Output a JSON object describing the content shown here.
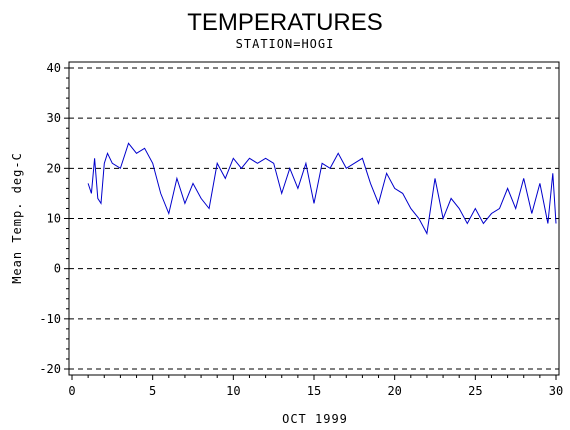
{
  "chart_data": {
    "type": "line",
    "title": "TEMPERATURES",
    "subtitle": "STATION=HOGI",
    "xlabel": "OCT 1999",
    "ylabel": "Mean Temp. deg-C",
    "xlim": [
      0,
      30
    ],
    "ylim": [
      -20,
      40
    ],
    "xticks": [
      0,
      5,
      10,
      15,
      20,
      25,
      30
    ],
    "yticks": [
      -20,
      -10,
      0,
      10,
      20,
      30,
      40
    ],
    "grid": "horizontal dashed at y ticks",
    "line_color": "#0000cc",
    "series": [
      {
        "x": [
          1.0,
          1.2,
          1.4,
          1.6,
          1.8,
          2.0,
          2.2,
          2.5,
          3.0,
          3.5,
          4.0,
          4.5,
          5.0,
          5.5,
          6.0,
          6.5,
          7.0,
          7.5,
          8.0,
          8.5,
          9.0,
          9.5,
          10.0,
          10.5,
          11.0,
          11.5,
          12.0,
          12.5,
          13.0,
          13.5,
          14.0,
          14.5,
          15.0,
          15.5,
          16.0,
          16.5,
          17.0,
          17.5,
          18.0,
          18.5,
          19.0,
          19.5,
          20.0,
          20.5,
          21.0,
          21.5,
          22.0,
          22.5,
          23.0,
          23.5,
          24.0,
          24.5,
          25.0,
          25.5,
          26.0,
          26.5,
          27.0,
          27.5,
          28.0,
          28.5,
          29.0,
          29.5,
          29.8,
          30.0
        ],
        "values": [
          17,
          15,
          22,
          14,
          13,
          21,
          23,
          21,
          20,
          25,
          23,
          24,
          21,
          15,
          11,
          18,
          13,
          17,
          14,
          12,
          21,
          18,
          22,
          20,
          22,
          21,
          22,
          21,
          15,
          20,
          16,
          21,
          13,
          21,
          20,
          23,
          20,
          21,
          22,
          17,
          13,
          19,
          16,
          15,
          12,
          10,
          7,
          18,
          10,
          14,
          12,
          9,
          12,
          9,
          11,
          12,
          16,
          12,
          18,
          11,
          17,
          9,
          19,
          9
        ]
      }
    ]
  }
}
